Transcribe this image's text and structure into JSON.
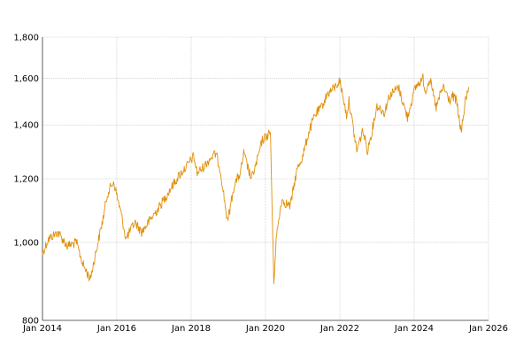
{
  "chart_data": {
    "type": "line",
    "title": "",
    "xlabel": "",
    "ylabel": "",
    "y_scale": "log",
    "grid": true,
    "legend": "none",
    "xlim": [
      "2014-01-01",
      "2026-01-01"
    ],
    "ylim": [
      800,
      1800
    ],
    "x_ticks": [
      {
        "date": "2014-01-01",
        "label": "Jan 2014"
      },
      {
        "date": "2016-01-01",
        "label": "Jan 2016"
      },
      {
        "date": "2018-01-01",
        "label": "Jan 2018"
      },
      {
        "date": "2020-01-01",
        "label": "Jan 2020"
      },
      {
        "date": "2022-01-01",
        "label": "Jan 2022"
      },
      {
        "date": "2024-01-01",
        "label": "Jan 2024"
      },
      {
        "date": "2026-01-01",
        "label": "Jan 2026"
      }
    ],
    "y_ticks": [
      {
        "value": 800,
        "label": "800"
      },
      {
        "value": 1000,
        "label": "1,000"
      },
      {
        "value": 1200,
        "label": "1,200"
      },
      {
        "value": 1400,
        "label": "1,400"
      },
      {
        "value": 1600,
        "label": "1,600"
      },
      {
        "value": 1800,
        "label": "1,800"
      }
    ],
    "series": [
      {
        "color": "#e0900a",
        "x": [
          "2014-01-01",
          "2014-03-01",
          "2014-06-01",
          "2014-09-01",
          "2014-12-01",
          "2015-02-01",
          "2015-04-15",
          "2015-06-01",
          "2015-08-25",
          "2015-10-01",
          "2015-12-01",
          "2016-02-10",
          "2016-04-01",
          "2016-06-27",
          "2016-09-01",
          "2016-12-01",
          "2017-03-01",
          "2017-06-01",
          "2017-09-01",
          "2017-12-01",
          "2018-01-25",
          "2018-03-01",
          "2018-05-01",
          "2018-07-01",
          "2018-09-01",
          "2018-10-15",
          "2018-12-24",
          "2019-03-01",
          "2019-05-01",
          "2019-06-01",
          "2019-08-15",
          "2019-10-01",
          "2019-12-01",
          "2020-02-19",
          "2020-03-23",
          "2020-04-15",
          "2020-06-08",
          "2020-07-15",
          "2020-09-01",
          "2020-10-30",
          "2020-11-15",
          "2021-01-01",
          "2021-03-01",
          "2021-05-01",
          "2021-07-01",
          "2021-09-01",
          "2021-11-15",
          "2021-12-31",
          "2022-03-08",
          "2022-04-01",
          "2022-06-16",
          "2022-08-15",
          "2022-09-30",
          "2022-11-15",
          "2023-01-01",
          "2023-03-15",
          "2023-05-01",
          "2023-07-31",
          "2023-10-27",
          "2023-12-01",
          "2024-01-15",
          "2024-03-28",
          "2024-04-19",
          "2024-06-01",
          "2024-08-05",
          "2024-09-15",
          "2024-10-15",
          "2024-12-15",
          "2025-01-15",
          "2025-02-20",
          "2025-04-08",
          "2025-05-15",
          "2025-06-20"
        ],
        "values": [
          970,
          1010,
          1030,
          990,
          1000,
          940,
          900,
          960,
          1080,
          1150,
          1190,
          1090,
          1010,
          1060,
          1030,
          1070,
          1110,
          1160,
          1210,
          1250,
          1280,
          1220,
          1240,
          1270,
          1290,
          1230,
          1060,
          1180,
          1220,
          1290,
          1200,
          1250,
          1340,
          1370,
          890,
          1010,
          1130,
          1120,
          1110,
          1220,
          1240,
          1280,
          1370,
          1440,
          1470,
          1530,
          1560,
          1590,
          1440,
          1500,
          1300,
          1380,
          1300,
          1380,
          1480,
          1450,
          1520,
          1560,
          1430,
          1490,
          1560,
          1600,
          1540,
          1600,
          1470,
          1530,
          1560,
          1500,
          1520,
          1500,
          1370,
          1490,
          1560
        ]
      }
    ]
  }
}
